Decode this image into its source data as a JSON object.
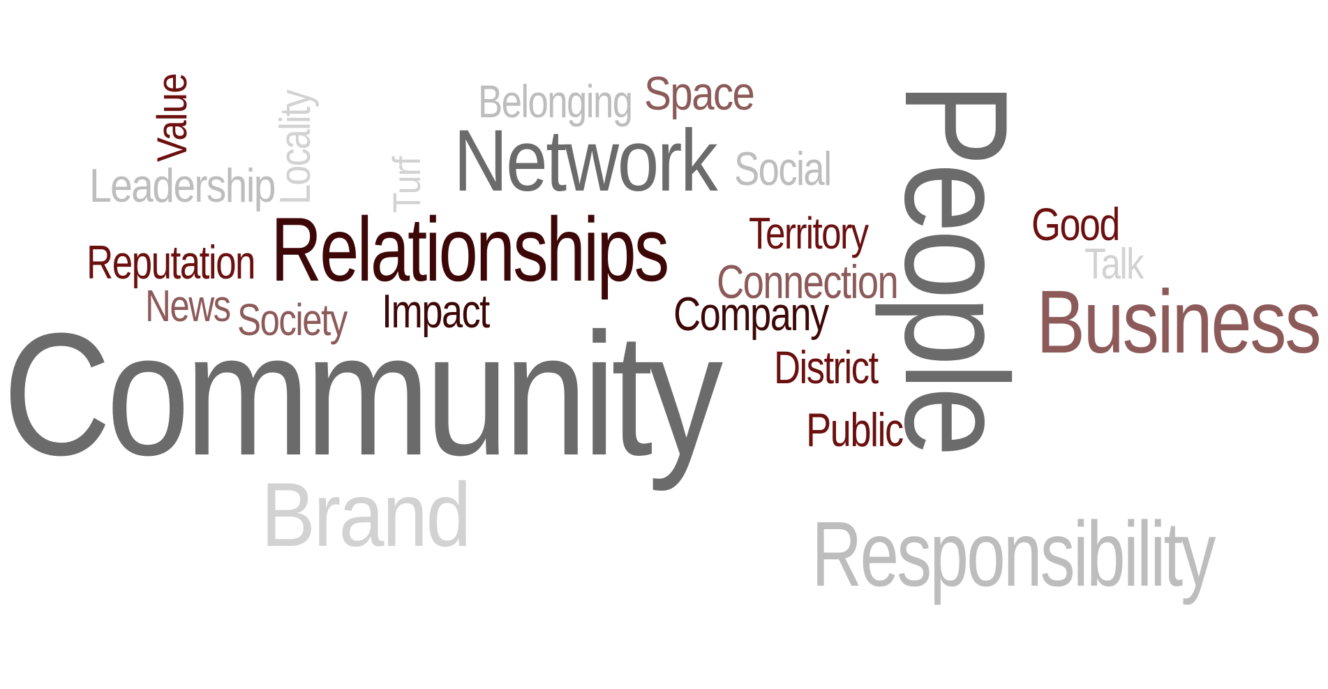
{
  "palette": {
    "gray": "#6b6b6b",
    "light": "#bdbdbd",
    "lighter": "#d2d2d2",
    "maroon": "#6b0f0f",
    "dark": "#3d0707",
    "rose": "#8d5a5a"
  },
  "words": {
    "community": "Community",
    "people": "People",
    "relationships": "Relationships",
    "network": "Network",
    "business": "Business",
    "responsibility": "Responsibility",
    "brand": "Brand",
    "leadership": "Leadership",
    "locality": "Locality",
    "value": "Value",
    "belonging": "Belonging",
    "space": "Space",
    "turf": "Turf",
    "social": "Social",
    "territory": "Territory",
    "good": "Good",
    "talk": "Talk",
    "reputation": "Reputation",
    "connection": "Connection",
    "news": "News",
    "society": "Society",
    "impact": "Impact",
    "company": "Company",
    "district": "District",
    "public": "Public"
  }
}
